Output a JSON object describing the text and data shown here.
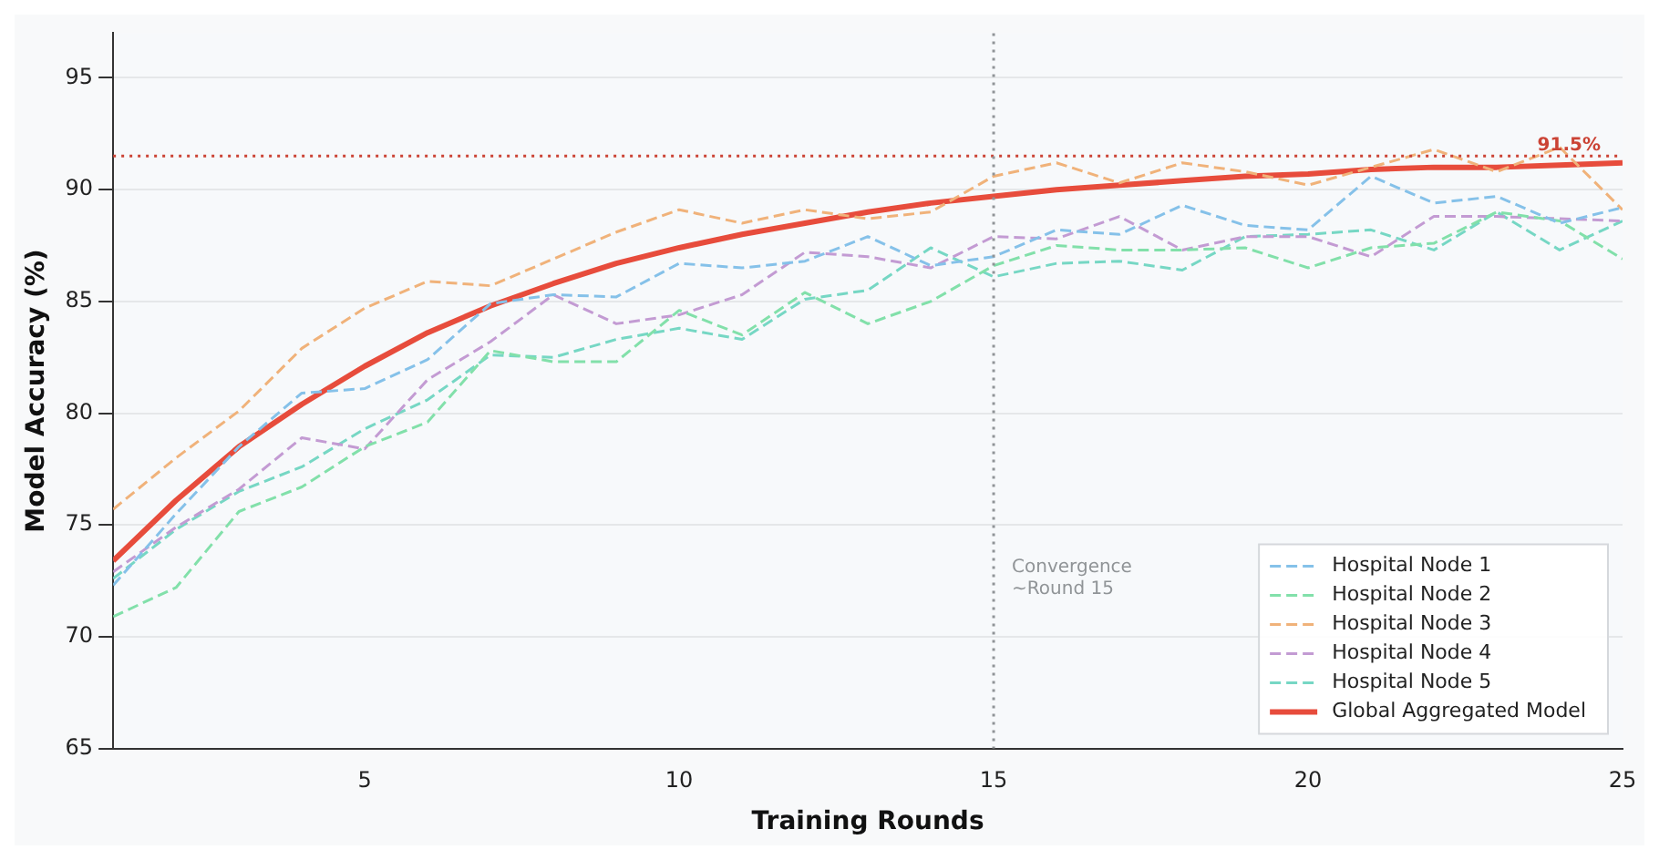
{
  "chart_data": {
    "type": "line",
    "xlabel": "Training Rounds",
    "ylabel": "Model Accuracy (%)",
    "x": [
      1,
      2,
      3,
      4,
      5,
      6,
      7,
      8,
      9,
      10,
      11,
      12,
      13,
      14,
      15,
      16,
      17,
      18,
      19,
      20,
      21,
      22,
      23,
      24,
      25
    ],
    "xlim": [
      1,
      25
    ],
    "xticks": [
      5,
      10,
      15,
      20,
      25
    ],
    "ylim": [
      65,
      97
    ],
    "yticks": [
      65,
      70,
      75,
      80,
      85,
      90,
      95
    ],
    "grid": "y",
    "legend": "bottom right",
    "marker": "none",
    "series": [
      {
        "name": "Hospital Node 1",
        "color": "#85c1e9",
        "line_style": "dashed",
        "values": [
          72.3,
          75.5,
          78.5,
          80.9,
          81.1,
          82.4,
          84.9,
          85.3,
          85.2,
          86.7,
          86.5,
          86.8,
          87.9,
          86.6,
          87.0,
          88.2,
          88.0,
          89.3,
          88.4,
          88.2,
          90.6,
          89.4,
          89.7,
          88.5,
          89.2
        ]
      },
      {
        "name": "Hospital Node 2",
        "color": "#82e0aa",
        "line_style": "dashed",
        "values": [
          70.9,
          72.2,
          75.6,
          76.7,
          78.5,
          79.6,
          82.8,
          82.3,
          82.3,
          84.6,
          83.5,
          85.4,
          84.0,
          85.0,
          86.6,
          87.5,
          87.3,
          87.3,
          87.4,
          86.5,
          87.4,
          87.6,
          89.0,
          88.6,
          86.9
        ]
      },
      {
        "name": "Hospital Node 3",
        "color": "#f0b27a",
        "line_style": "dashed",
        "values": [
          75.7,
          78.0,
          80.1,
          82.9,
          84.7,
          85.9,
          85.7,
          86.9,
          88.1,
          89.1,
          88.5,
          89.1,
          88.7,
          89.0,
          90.6,
          91.2,
          90.3,
          91.2,
          90.8,
          90.2,
          91.0,
          91.8,
          90.8,
          91.9,
          89.1
        ]
      },
      {
        "name": "Hospital Node 4",
        "color": "#c39bd3",
        "line_style": "dashed",
        "values": [
          72.9,
          74.9,
          76.6,
          78.9,
          78.4,
          81.5,
          83.2,
          85.3,
          84.0,
          84.4,
          85.3,
          87.2,
          87.0,
          86.5,
          87.9,
          87.8,
          88.8,
          87.3,
          87.9,
          87.9,
          87.0,
          88.8,
          88.8,
          88.7,
          88.6
        ]
      },
      {
        "name": "Hospital Node 5",
        "color": "#76d7c4",
        "line_style": "dashed",
        "values": [
          72.6,
          74.8,
          76.5,
          77.6,
          79.3,
          80.6,
          82.6,
          82.5,
          83.3,
          83.8,
          83.3,
          85.1,
          85.5,
          87.4,
          86.1,
          86.7,
          86.8,
          86.4,
          87.9,
          88.0,
          88.2,
          87.3,
          89.0,
          87.3,
          88.6
        ]
      },
      {
        "name": "Global Aggregated Model",
        "color": "#e74c3c",
        "line_style": "solid",
        "values": [
          73.4,
          76.1,
          78.5,
          80.4,
          82.1,
          83.6,
          84.8,
          85.8,
          86.7,
          87.4,
          88.0,
          88.5,
          89.0,
          89.4,
          89.7,
          90.0,
          90.2,
          90.4,
          90.6,
          90.7,
          90.9,
          91.0,
          91.0,
          91.1,
          91.2
        ]
      }
    ],
    "ref_lines": [
      {
        "axis": "y",
        "value": 91.5,
        "label": "91.5%",
        "color": "#cb4335",
        "line_style": "dotted"
      },
      {
        "axis": "x",
        "value": 15,
        "label": "Convergence\n~Round 15",
        "color": "#909497",
        "line_style": "dotted"
      }
    ]
  }
}
